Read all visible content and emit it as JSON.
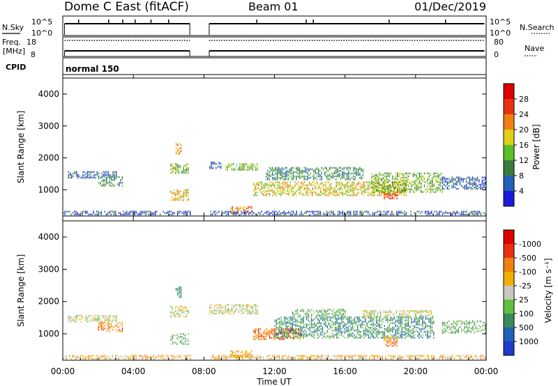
{
  "header": {
    "station": "Dome C East (fitACF)",
    "beam": "Beam 01",
    "date": "01/Dec/2019"
  },
  "status_panels": {
    "nsky_label": "N.Sky",
    "nsearch_label": "N.Search",
    "noise_ticks_left": [
      "10^5",
      "10^0"
    ],
    "noise_ticks_right": [
      "10^5",
      "10^0"
    ],
    "freq_label_line1": "Freq.",
    "freq_label_line2": "[MHz]",
    "freq_ticks": [
      "18",
      "8"
    ],
    "nave_label": "Nave",
    "nave_ticks": [
      "80",
      "0"
    ],
    "cpid_label": "CPID",
    "cpid_value": "normal 150"
  },
  "chart_data": [
    {
      "type": "heatmap",
      "name": "power",
      "ylabel": "Slant Range [km]",
      "ylim": [
        180,
        4500
      ],
      "yticks": [
        "1000",
        "2000",
        "3000",
        "4000"
      ],
      "xlim": [
        0,
        24
      ],
      "colorbar": {
        "label": "Power [dB]",
        "ticks": [
          "4",
          "8",
          "12",
          "16",
          "20",
          "24",
          "28"
        ],
        "colors": [
          "#1a1adc",
          "#2060b8",
          "#3a7a3a",
          "#58c028",
          "#e0d018",
          "#f08010",
          "#e83010",
          "#dd0000"
        ]
      },
      "regions": [
        {
          "t0": 0.3,
          "t1": 3.0,
          "r0": 1350,
          "r1": 1550,
          "level": 1
        },
        {
          "t0": 2.0,
          "t1": 3.4,
          "r0": 1100,
          "r1": 1400,
          "level": 2
        },
        {
          "t0": 6.1,
          "t1": 7.1,
          "r0": 1500,
          "r1": 1800,
          "level": 3
        },
        {
          "t0": 6.1,
          "t1": 7.1,
          "r0": 650,
          "r1": 1000,
          "level": 4
        },
        {
          "t0": 6.4,
          "t1": 6.7,
          "r0": 2100,
          "r1": 2450,
          "level": 5
        },
        {
          "t0": 8.3,
          "t1": 9.0,
          "r0": 1650,
          "r1": 1850,
          "level": 1
        },
        {
          "t0": 9.2,
          "t1": 11.0,
          "r0": 1600,
          "r1": 1800,
          "level": 3
        },
        {
          "t0": 9.5,
          "t1": 10.7,
          "r0": 250,
          "r1": 450,
          "level": 5
        },
        {
          "t0": 10.8,
          "t1": 19.5,
          "r0": 800,
          "r1": 1250,
          "level": 4
        },
        {
          "t0": 11.5,
          "t1": 17.0,
          "r0": 1300,
          "r1": 1700,
          "level": 2
        },
        {
          "t0": 17.5,
          "t1": 21.5,
          "r0": 900,
          "r1": 1500,
          "level": 3
        },
        {
          "t0": 18.2,
          "t1": 19.0,
          "r0": 700,
          "r1": 900,
          "level": 6
        },
        {
          "t0": 21.5,
          "t1": 24.0,
          "r0": 1000,
          "r1": 1400,
          "level": 1
        },
        {
          "t0": 0.0,
          "t1": 24.0,
          "r0": 200,
          "r1": 320,
          "level": 1
        }
      ]
    },
    {
      "type": "heatmap",
      "name": "velocity",
      "ylabel": "Slant Range [km]",
      "ylim": [
        180,
        4500
      ],
      "yticks": [
        "1000",
        "2000",
        "3000",
        "4000"
      ],
      "xlim": [
        0,
        24
      ],
      "colorbar": {
        "label": "Velocity [m s⁻¹]",
        "ticks": [
          "1000",
          "500",
          "100",
          "25",
          "-25",
          "-100",
          "-500",
          "-1000"
        ],
        "colors": [
          "#1e3ccc",
          "#2060b8",
          "#3a8a5a",
          "#60c040",
          "#c8c8c0",
          "#f0b000",
          "#f08010",
          "#e83010",
          "#dd0000"
        ]
      },
      "regions": [
        {
          "t0": 0.3,
          "t1": 3.0,
          "r0": 1350,
          "r1": 1550,
          "level": 4
        },
        {
          "t0": 2.0,
          "t1": 3.4,
          "r0": 1050,
          "r1": 1350,
          "level": 6
        },
        {
          "t0": 6.1,
          "t1": 7.1,
          "r0": 1500,
          "r1": 1850,
          "level": 4
        },
        {
          "t0": 6.1,
          "t1": 7.1,
          "r0": 650,
          "r1": 1000,
          "level": 3
        },
        {
          "t0": 6.4,
          "t1": 6.7,
          "r0": 2100,
          "r1": 2450,
          "level": 2
        },
        {
          "t0": 8.3,
          "t1": 11.0,
          "r0": 1600,
          "r1": 1900,
          "level": 4
        },
        {
          "t0": 9.5,
          "t1": 10.7,
          "r0": 250,
          "r1": 450,
          "level": 5
        },
        {
          "t0": 10.8,
          "t1": 13.5,
          "r0": 800,
          "r1": 1150,
          "level": 6
        },
        {
          "t0": 12.0,
          "t1": 21.0,
          "r0": 850,
          "r1": 1500,
          "level": 2
        },
        {
          "t0": 13.0,
          "t1": 16.0,
          "r0": 1500,
          "r1": 1750,
          "level": 3
        },
        {
          "t0": 17.0,
          "t1": 21.0,
          "r0": 1500,
          "r1": 1700,
          "level": 4
        },
        {
          "t0": 18.2,
          "t1": 19.0,
          "r0": 600,
          "r1": 900,
          "level": 6
        },
        {
          "t0": 21.5,
          "t1": 24.0,
          "r0": 1000,
          "r1": 1400,
          "level": 3
        },
        {
          "t0": 0.0,
          "t1": 24.0,
          "r0": 200,
          "r1": 320,
          "level": 5
        }
      ]
    }
  ],
  "xaxis": {
    "ticks": [
      "00:00",
      "04:00",
      "08:00",
      "12:00",
      "16:00",
      "20:00",
      "00:00"
    ],
    "label": "Time UT",
    "data_gap": [
      7.2,
      8.3
    ]
  }
}
